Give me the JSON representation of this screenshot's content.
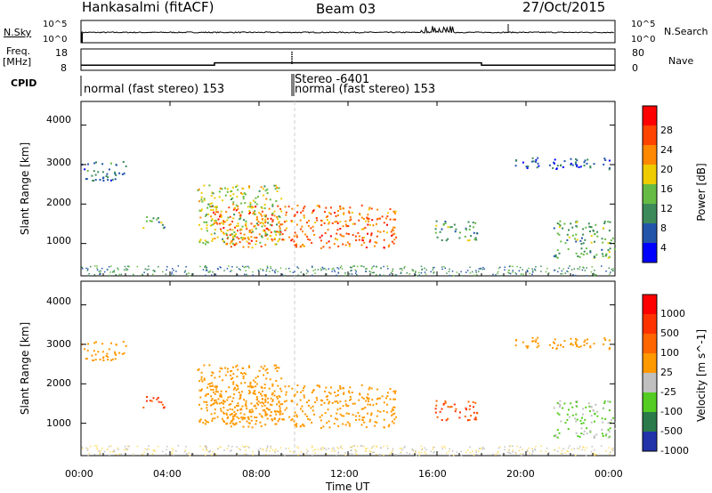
{
  "header": {
    "station": "Hankasalmi (fitACF)",
    "beam": "Beam 03",
    "date": "27/Oct/2015"
  },
  "strip1": {
    "left_label": "N.Sky",
    "right_label": "N.Search",
    "left_ticks": [
      "10^5",
      "10^0"
    ],
    "right_ticks": [
      "10^5",
      "10^0"
    ]
  },
  "strip2": {
    "left_label_1": "Freq.",
    "left_label_2": "[MHz]",
    "right_label": "Nave",
    "left_ticks": [
      "18",
      "8"
    ],
    "right_ticks": [
      "80",
      "0"
    ]
  },
  "cpid": {
    "label": "CPID",
    "segments": [
      {
        "text": "normal (fast stereo) 153",
        "start_hour": 0
      },
      {
        "text": "Stereo -6401",
        "start_hour": 9.45
      },
      {
        "text": "normal (fast stereo) 153",
        "start_hour": 9.5
      }
    ]
  },
  "power_panel": {
    "ylabel": "Slant Range [km]",
    "yticks": [
      "4000",
      "3000",
      "2000",
      "1000"
    ],
    "colorbar_label": "Power [dB]",
    "colorbar_ticks": [
      "28",
      "24",
      "20",
      "16",
      "12",
      "8",
      "4"
    ],
    "colors": [
      "#0000ff",
      "#2255aa",
      "#3c8a5a",
      "#66bb44",
      "#eecc00",
      "#ff8800",
      "#ff4400",
      "#ff0000"
    ]
  },
  "velocity_panel": {
    "ylabel": "Slant Range [km]",
    "yticks": [
      "4000",
      "3000",
      "2000",
      "1000"
    ],
    "colorbar_label": "Velocity [m s^-1]",
    "colorbar_ticks": [
      "1000",
      "500",
      "100",
      "25",
      "-25",
      "-100",
      "-500",
      "-1000"
    ],
    "colors": [
      "#2233aa",
      "#2a7a4a",
      "#55cc22",
      "#c0c0c0",
      "#ff9900",
      "#ff6600",
      "#ff3300",
      "#ff0000"
    ]
  },
  "xaxis": {
    "label": "Time UT",
    "ticks": [
      "00:00",
      "04:00",
      "08:00",
      "12:00",
      "16:00",
      "20:00",
      "00:00"
    ]
  },
  "chart_data": {
    "type": "heatmap",
    "xlabel": "Time UT",
    "ylabel": "Slant Range [km]",
    "xlim_hours": [
      0,
      24
    ],
    "ylim_km": [
      180,
      4600
    ],
    "x_ticks": [
      "00:00",
      "04:00",
      "08:00",
      "12:00",
      "16:00",
      "20:00",
      "00:00"
    ],
    "y_ticks": [
      1000,
      2000,
      3000,
      4000
    ],
    "power_scale_db": [
      4,
      8,
      12,
      16,
      20,
      24,
      28
    ],
    "velocity_scale": [
      1000,
      500,
      100,
      25,
      -25,
      -100,
      -500,
      -1000
    ],
    "frequency_mhz_segments": [
      {
        "from_hour": 0,
        "to_hour": 6,
        "value": 10.4
      },
      {
        "from_hour": 6,
        "to_hour": 18,
        "value": 11.5
      },
      {
        "from_hour": 18,
        "to_hour": 24,
        "value": 10.4
      }
    ],
    "echo_regions": [
      {
        "name": "main",
        "from_hour": 5.8,
        "to_hour": 14.2,
        "range_km": [
          900,
          2000
        ],
        "power_db": 24,
        "velocity": 0
      },
      {
        "name": "dusk_arc",
        "from_hour": 5.2,
        "to_hour": 9.0,
        "range_km": [
          1000,
          2500
        ],
        "power_db": 16,
        "velocity": 0
      },
      {
        "name": "far_range",
        "from_hour": 0.0,
        "to_hour": 2.0,
        "range_km": [
          2600,
          3100
        ],
        "power_db": 8,
        "velocity": 0
      },
      {
        "name": "west_patch",
        "from_hour": 2.7,
        "to_hour": 3.8,
        "range_km": [
          1400,
          1700
        ],
        "power_db": 12,
        "velocity": -100
      },
      {
        "name": "evening",
        "from_hour": 15.8,
        "to_hour": 17.8,
        "range_km": [
          1100,
          1600
        ],
        "power_db": 12,
        "velocity": -100
      },
      {
        "name": "late_near",
        "from_hour": 21.2,
        "to_hour": 24.0,
        "range_km": [
          600,
          900
        ],
        "power_db": 12,
        "velocity": 100
      },
      {
        "name": "late_mid",
        "from_hour": 21.2,
        "to_hour": 24.0,
        "range_km": [
          1000,
          1600
        ],
        "power_db": 12,
        "velocity": 100
      },
      {
        "name": "late_far",
        "from_hour": 19.5,
        "to_hour": 24.0,
        "range_km": [
          2900,
          3200
        ],
        "power_db": 6,
        "velocity": 0
      }
    ]
  }
}
